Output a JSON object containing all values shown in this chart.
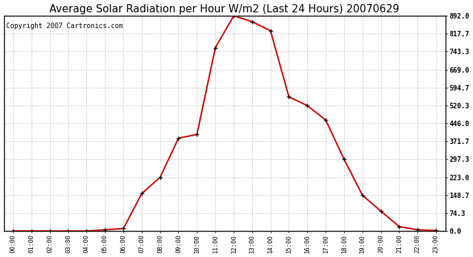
{
  "title": "Average Solar Radiation per Hour W/m2 (Last 24 Hours) 20070629",
  "copyright_text": "Copyright 2007 Cartronics.com",
  "hours": [
    "00:00",
    "01:00",
    "02:00",
    "03:00",
    "04:00",
    "05:00",
    "06:00",
    "07:00",
    "08:00",
    "09:00",
    "10:00",
    "11:00",
    "12:00",
    "13:00",
    "14:00",
    "15:00",
    "16:00",
    "17:00",
    "18:00",
    "19:00",
    "20:00",
    "21:00",
    "22:00",
    "23:00"
  ],
  "values": [
    0,
    0,
    0,
    0,
    0,
    5,
    10,
    155,
    223,
    385,
    400,
    760,
    892,
    868,
    830,
    556,
    520,
    460,
    297,
    148,
    82,
    18,
    5,
    2
  ],
  "line_color": "#cc0000",
  "marker_color": "#000000",
  "bg_color": "#ffffff",
  "grid_color": "#bbbbbb",
  "title_fontsize": 11,
  "copyright_fontsize": 7,
  "ytick_labels": [
    "0.0",
    "74.3",
    "148.7",
    "223.0",
    "297.3",
    "371.7",
    "446.0",
    "520.3",
    "594.7",
    "669.0",
    "743.3",
    "817.7",
    "892.0"
  ],
  "ytick_values": [
    0.0,
    74.3,
    148.7,
    223.0,
    297.3,
    371.7,
    446.0,
    520.3,
    594.7,
    669.0,
    743.3,
    817.7,
    892.0
  ],
  "ymax": 892.0,
  "ymin": 0.0,
  "figwidth": 6.9,
  "figheight": 3.75,
  "dpi": 100
}
